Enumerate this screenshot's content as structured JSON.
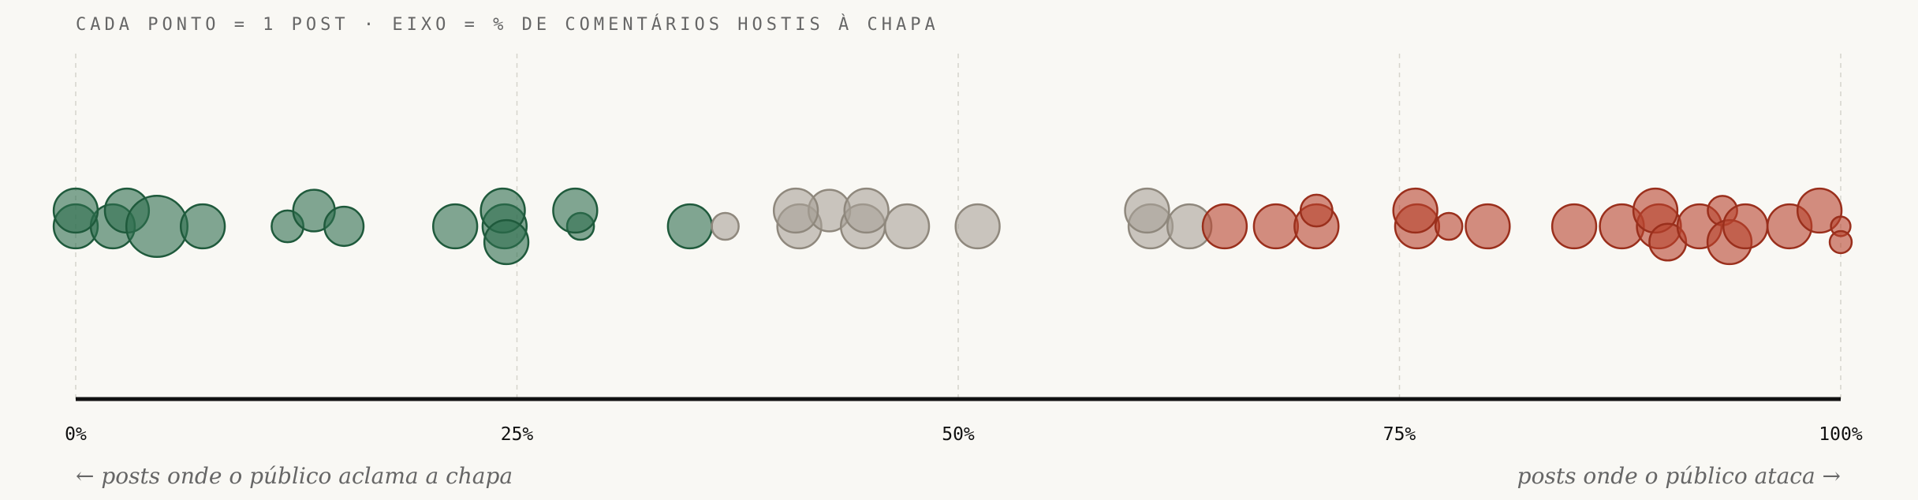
{
  "chart_data": {
    "type": "strip",
    "title": "CADA PONTO = 1 POST · EIXO = % DE COMENTÁRIOS HOSTIS À CHAPA",
    "annotations": [
      "← posts onde o público aclama a chapa",
      "posts onde o público ataca →"
    ],
    "xlim": [
      0,
      100
    ],
    "xticks": [
      {
        "value": 0,
        "label": "0%"
      },
      {
        "value": 25,
        "label": "25%"
      },
      {
        "value": 50,
        "label": "50%"
      },
      {
        "value": 75,
        "label": "75%"
      },
      {
        "value": 100,
        "label": "100%"
      }
    ],
    "grid": true,
    "series": [
      {
        "color": "#2e6e4f",
        "stroke": "#1f5a3c",
        "values": [
          0,
          2.1,
          0,
          2.9,
          4.6,
          7.2,
          12.0,
          13.5,
          15.2,
          21.5,
          24.3,
          24.2,
          24.4,
          28.6,
          28.3,
          34.8
        ],
        "sizes": [
          18,
          18,
          18,
          18,
          25,
          18,
          13,
          17,
          16,
          18,
          18,
          18,
          18,
          11,
          18,
          18
        ]
      },
      {
        "color": "#a8a298",
        "stroke": "#8f887d",
        "values": [
          36.8,
          41.0,
          42.7,
          44.6,
          40.8,
          44.8,
          47.1,
          51.1,
          60.9,
          60.7,
          63.1
        ],
        "sizes": [
          11,
          18,
          17,
          18,
          18,
          18,
          18,
          18,
          18,
          18,
          18
        ]
      },
      {
        "color": "#b8452e",
        "stroke": "#9a2f1c",
        "values": [
          65.1,
          68.0,
          70.3,
          70.3,
          76.0,
          75.9,
          77.8,
          80.0,
          84.9,
          87.6,
          89.7,
          89.5,
          90.2,
          92.0,
          93.3,
          93.7,
          94.6,
          97.1,
          98.8,
          100,
          100
        ],
        "sizes": [
          18,
          18,
          18,
          13,
          18,
          18,
          11,
          18,
          18,
          18,
          18,
          18,
          15,
          18,
          12,
          18,
          18,
          18,
          18,
          8,
          9
        ]
      }
    ]
  }
}
